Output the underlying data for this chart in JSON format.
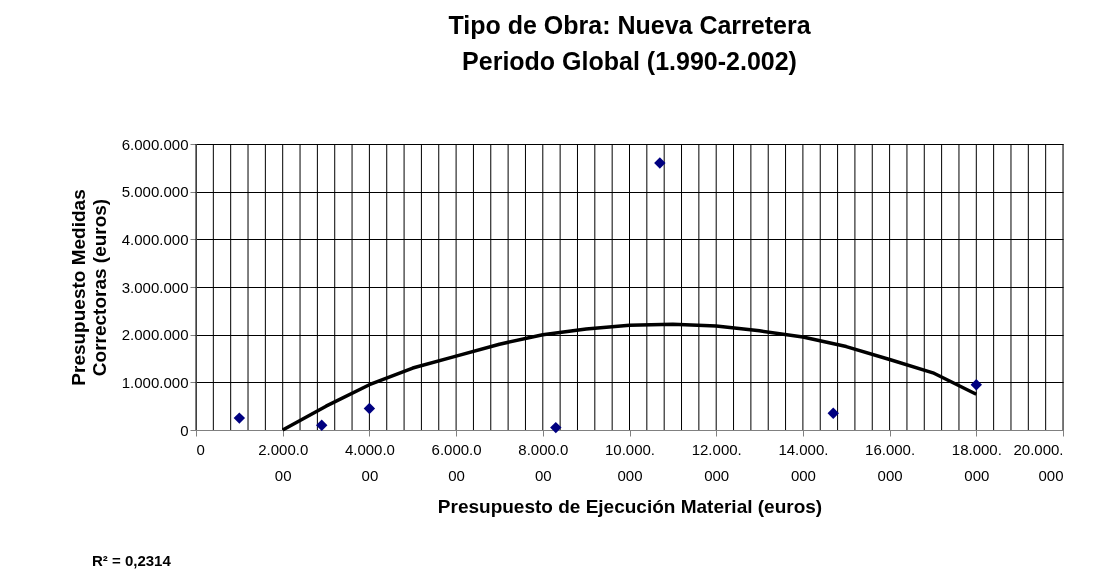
{
  "chart_data": {
    "type": "scatter",
    "title": "Tipo de Obra: Nueva Carretera\nPeriodo Global (1.990-2.002)",
    "xlabel": "Presupuesto de Ejecución Material (euros)",
    "ylabel": "Presupuesto Medidas\nCorrectoras (euros)",
    "annotations": [
      "R² = 0,2314"
    ],
    "series": [
      {
        "type": "scatter",
        "color": "#000080",
        "marker": "diamond",
        "x": [
          1000000,
          2900000,
          4000000,
          8300000,
          10700000,
          14700000,
          18000000
        ],
        "values": [
          250000,
          100000,
          450000,
          50000,
          5600000,
          350000,
          950000
        ]
      },
      {
        "type": "line",
        "color": "#000000",
        "line_style": "solid",
        "x": [
          2000000,
          3000000,
          4000000,
          5000000,
          6000000,
          7000000,
          8000000,
          9000000,
          10000000,
          11000000,
          12000000,
          13000000,
          14000000,
          15000000,
          16000000,
          17000000,
          18000000
        ],
        "values": [
          0,
          500000,
          950000,
          1300000,
          1550000,
          1800000,
          2000000,
          2120000,
          2200000,
          2220000,
          2180000,
          2080000,
          1950000,
          1750000,
          1480000,
          1200000,
          750000
        ]
      }
    ],
    "xlim": [
      0,
      20000000
    ],
    "xticks": [
      0,
      {
        "value": 400000,
        "label": null
      },
      {
        "value": 800000,
        "label": null
      },
      {
        "value": 1200000,
        "label": null
      },
      {
        "value": 1600000,
        "label": null
      },
      {
        "value": 2000000,
        "label": "2.000.000"
      },
      {
        "value": 2400000,
        "label": null
      },
      {
        "value": 2800000,
        "label": null
      },
      {
        "value": 3200000,
        "label": null
      },
      {
        "value": 3600000,
        "label": null
      },
      {
        "value": 4000000,
        "label": "4.000.000"
      },
      {
        "value": 4400000,
        "label": null
      },
      {
        "value": 4800000,
        "label": null
      },
      {
        "value": 5200000,
        "label": null
      },
      {
        "value": 5600000,
        "label": null
      },
      {
        "value": 6000000,
        "label": "6.000.000"
      },
      {
        "value": 6400000,
        "label": null
      },
      {
        "value": 6800000,
        "label": null
      },
      {
        "value": 7200000,
        "label": null
      },
      {
        "value": 7600000,
        "label": null
      },
      {
        "value": 8000000,
        "label": "8.000.000"
      },
      {
        "value": 8400000,
        "label": null
      },
      {
        "value": 8800000,
        "label": null
      },
      {
        "value": 9200000,
        "label": null
      },
      {
        "value": 9600000,
        "label": null
      },
      {
        "value": 10000000,
        "label": "10.000.000"
      },
      {
        "value": 10400000,
        "label": null
      },
      {
        "value": 10800000,
        "label": null
      },
      {
        "value": 11200000,
        "label": null
      },
      {
        "value": 11600000,
        "label": null
      },
      {
        "value": 12000000,
        "label": "12.000.000"
      },
      {
        "value": 12400000,
        "label": null
      },
      {
        "value": 12800000,
        "label": null
      },
      {
        "value": 13200000,
        "label": null
      },
      {
        "value": 13600000,
        "label": null
      },
      {
        "value": 14000000,
        "label": "14.000.000"
      },
      {
        "value": 14400000,
        "label": null
      },
      {
        "value": 14800000,
        "label": null
      },
      {
        "value": 15200000,
        "label": null
      },
      {
        "value": 15600000,
        "label": null
      },
      {
        "value": 16000000,
        "label": "16.000.000"
      },
      {
        "value": 16400000,
        "label": null
      },
      {
        "value": 16800000,
        "label": null
      },
      {
        "value": 17200000,
        "label": null
      },
      {
        "value": 17600000,
        "label": null
      },
      {
        "value": 18000000,
        "label": "18.000.000"
      },
      {
        "value": 18400000,
        "label": null
      },
      {
        "value": 18800000,
        "label": null
      },
      {
        "value": 19200000,
        "label": null
      },
      {
        "value": 19600000,
        "label": null
      },
      {
        "value": 20000000,
        "label": "20.000.000"
      }
    ],
    "ylim": [
      0,
      6000000
    ],
    "yticks": [
      0,
      {
        "value": 1000000,
        "label": "1.000.000"
      },
      {
        "value": 2000000,
        "label": "2.000.000"
      },
      {
        "value": 3000000,
        "label": "3.000.000"
      },
      {
        "value": 4000000,
        "label": "4.000.000"
      },
      {
        "value": 5000000,
        "label": "5.000.000"
      },
      {
        "value": 6000000,
        "label": "6.000.000"
      }
    ],
    "grid": true
  }
}
